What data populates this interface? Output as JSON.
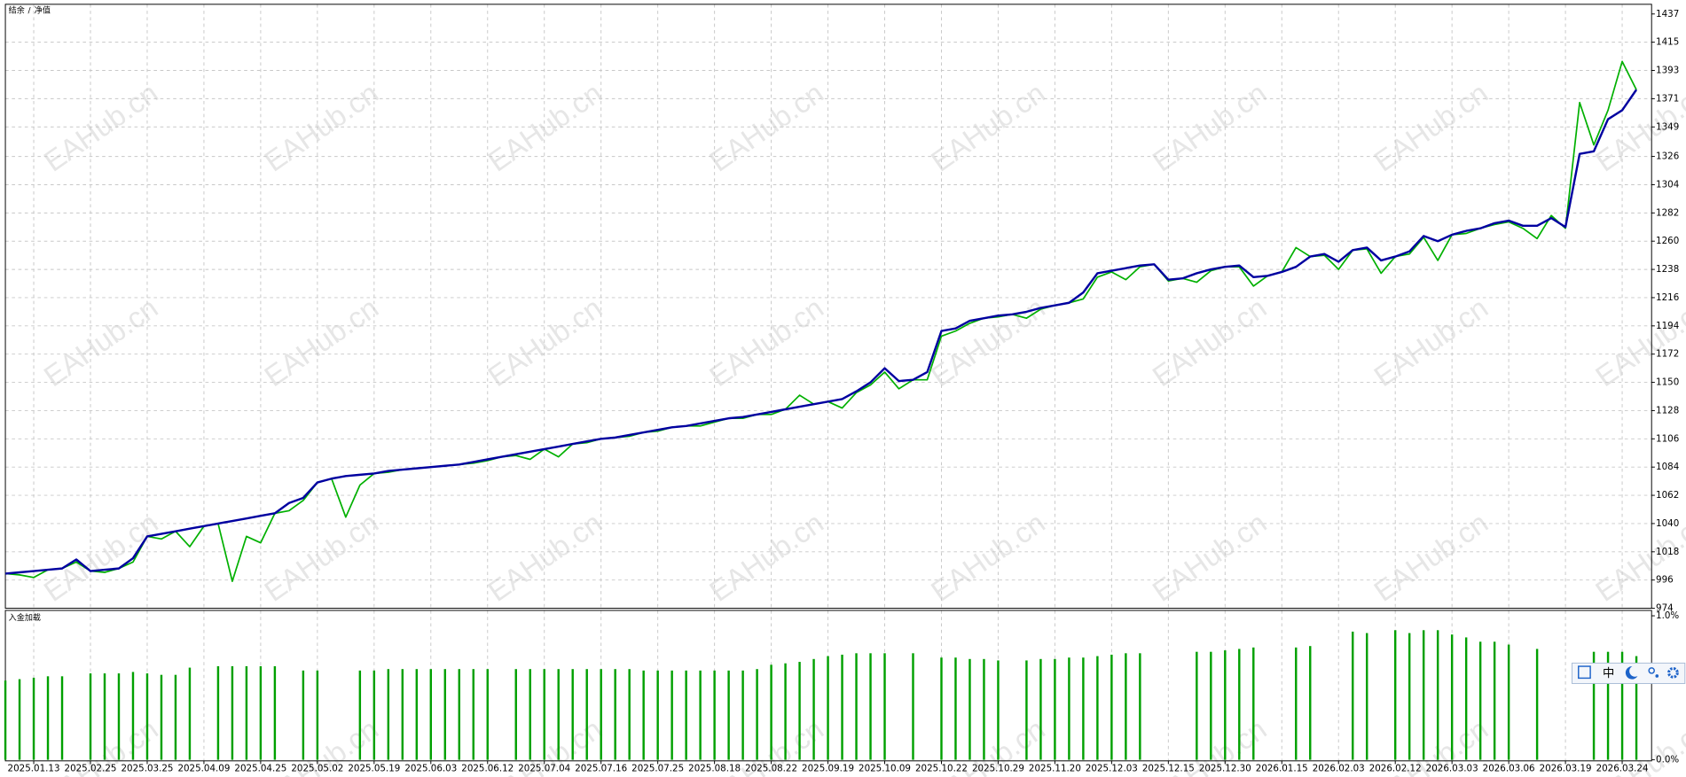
{
  "chart_data": [
    {
      "type": "line",
      "ylim": [
        974,
        1437
      ],
      "yticks": [
        1437,
        1415,
        1393,
        1371,
        1349,
        1326,
        1304,
        1282,
        1260,
        1238,
        1216,
        1194,
        1172,
        1150,
        1128,
        1106,
        1084,
        1062,
        1040,
        1018,
        996,
        974
      ],
      "grid": true,
      "legend_separator": "/",
      "series": [
        {
          "name": "结余",
          "color": "#0000a0",
          "values": [
            1001,
            1002,
            1003,
            1004,
            1005,
            1012,
            1003,
            1004,
            1005,
            1013,
            1030,
            1032,
            1034,
            1036,
            1038,
            1040,
            1042,
            1044,
            1046,
            1048,
            1056,
            1060,
            1072,
            1075,
            1077,
            1078,
            1079,
            1081,
            1082,
            1083,
            1084,
            1085,
            1086,
            1088,
            1090,
            1092,
            1094,
            1096,
            1098,
            1100,
            1102,
            1104,
            1106,
            1107,
            1109,
            1111,
            1113,
            1115,
            1116,
            1118,
            1120,
            1122,
            1123,
            1125,
            1127,
            1129,
            1131,
            1133,
            1135,
            1137,
            1143,
            1150,
            1161,
            1151,
            1152,
            1158,
            1190,
            1192,
            1198,
            1200,
            1202,
            1203,
            1205,
            1208,
            1210,
            1212,
            1220,
            1235,
            1237,
            1239,
            1241,
            1242,
            1230,
            1231,
            1235,
            1238,
            1240,
            1241,
            1232,
            1233,
            1236,
            1240,
            1248,
            1250,
            1244,
            1253,
            1255,
            1245,
            1248,
            1252,
            1264,
            1260,
            1265,
            1268,
            1270,
            1274,
            1276,
            1272,
            1272,
            1278,
            1271,
            1328,
            1330,
            1355,
            1362,
            1378
          ]
        },
        {
          "name": "净值",
          "color": "#00b000",
          "values": [
            1001,
            1000,
            998,
            1004,
            1005,
            1010,
            1003,
            1002,
            1005,
            1010,
            1030,
            1028,
            1034,
            1022,
            1038,
            1040,
            995,
            1030,
            1025,
            1048,
            1050,
            1058,
            1072,
            1075,
            1045,
            1070,
            1079,
            1080,
            1082,
            1083,
            1084,
            1085,
            1086,
            1087,
            1089,
            1092,
            1093,
            1090,
            1098,
            1092,
            1102,
            1103,
            1106,
            1107,
            1108,
            1111,
            1112,
            1115,
            1116,
            1116,
            1119,
            1122,
            1122,
            1125,
            1125,
            1129,
            1140,
            1133,
            1135,
            1130,
            1142,
            1148,
            1158,
            1145,
            1152,
            1152,
            1186,
            1190,
            1196,
            1200,
            1201,
            1203,
            1200,
            1207,
            1210,
            1212,
            1215,
            1232,
            1236,
            1230,
            1240,
            1242,
            1229,
            1231,
            1228,
            1237,
            1240,
            1240,
            1225,
            1233,
            1236,
            1255,
            1248,
            1249,
            1238,
            1253,
            1254,
            1235,
            1248,
            1250,
            1263,
            1245,
            1265,
            1266,
            1270,
            1273,
            1275,
            1270,
            1262,
            1280,
            1270,
            1368,
            1335,
            1362,
            1400,
            1378
          ]
        }
      ]
    },
    {
      "type": "bar",
      "title": "入金加载",
      "color": "#00a000",
      "ylim": [
        0,
        1
      ],
      "yticks": [
        {
          "value": 1,
          "label": "1.0%"
        },
        {
          "value": 0,
          "label": "0.0%"
        }
      ],
      "categories": [
        null,
        null,
        "2025.01.13",
        null,
        null,
        null,
        "2025.02.25",
        null,
        null,
        null,
        "2025.03.25",
        null,
        null,
        null,
        "2025.04.09",
        null,
        null,
        null,
        "2025.04.25",
        null,
        null,
        null,
        "2025.05.02",
        null,
        null,
        null,
        "2025.05.19",
        null,
        null,
        null,
        "2025.06.03",
        null,
        null,
        null,
        "2025.06.12",
        null,
        null,
        null,
        "2025.07.04",
        null,
        null,
        null,
        "2025.07.16",
        null,
        null,
        null,
        "2025.07.25",
        null,
        null,
        null,
        "2025.08.18",
        null,
        null,
        null,
        "2025.08.22",
        null,
        null,
        null,
        "2025.09.19",
        null,
        null,
        null,
        "2025.10.09",
        null,
        null,
        null,
        "2025.10.22",
        null,
        null,
        null,
        "2025.10.29",
        null,
        null,
        null,
        "2025.11.20",
        null,
        null,
        null,
        "2025.12.03",
        null,
        null,
        null,
        "2025.12.15",
        null,
        null,
        null,
        "2025.12.30",
        null,
        null,
        null,
        "2026.01.15",
        null,
        null,
        null,
        "2026.02.03",
        null,
        null,
        null,
        "2026.02.12",
        null,
        null,
        null,
        "2026.03.03",
        null,
        null,
        null,
        "2026.03.06",
        null,
        null,
        null,
        "2026.03.19",
        null,
        null,
        null,
        "2026.03.24",
        null
      ],
      "values": [
        0.55,
        0.56,
        0.57,
        0.58,
        0.58,
        null,
        0.6,
        0.6,
        0.6,
        0.61,
        0.6,
        0.59,
        0.59,
        0.64,
        null,
        0.65,
        0.65,
        0.65,
        0.65,
        0.65,
        null,
        0.62,
        0.62,
        null,
        null,
        0.62,
        0.62,
        0.63,
        0.63,
        0.63,
        0.63,
        0.63,
        0.63,
        0.63,
        0.63,
        null,
        0.63,
        0.63,
        0.63,
        0.63,
        0.63,
        0.63,
        0.63,
        0.63,
        0.63,
        0.62,
        0.62,
        0.62,
        0.62,
        0.62,
        0.62,
        0.62,
        0.62,
        0.63,
        0.66,
        0.67,
        0.68,
        0.7,
        0.72,
        0.73,
        0.74,
        0.74,
        0.74,
        null,
        0.74,
        null,
        0.71,
        0.71,
        0.7,
        0.7,
        0.69,
        null,
        0.69,
        0.7,
        0.7,
        0.71,
        0.71,
        0.72,
        0.73,
        0.74,
        0.74,
        null,
        null,
        null,
        0.75,
        0.75,
        0.76,
        0.77,
        0.78,
        null,
        null,
        0.78,
        0.79,
        null,
        null,
        0.89,
        0.88,
        null,
        0.9,
        0.88,
        0.9,
        0.9,
        0.87,
        0.85,
        0.82,
        0.82,
        0.8,
        null,
        0.77,
        null,
        null,
        null,
        0.75,
        0.75,
        0.75,
        0.72
      ]
    }
  ],
  "watermark": "EAHub.cn",
  "ime_toolbar": {
    "label": "中"
  }
}
